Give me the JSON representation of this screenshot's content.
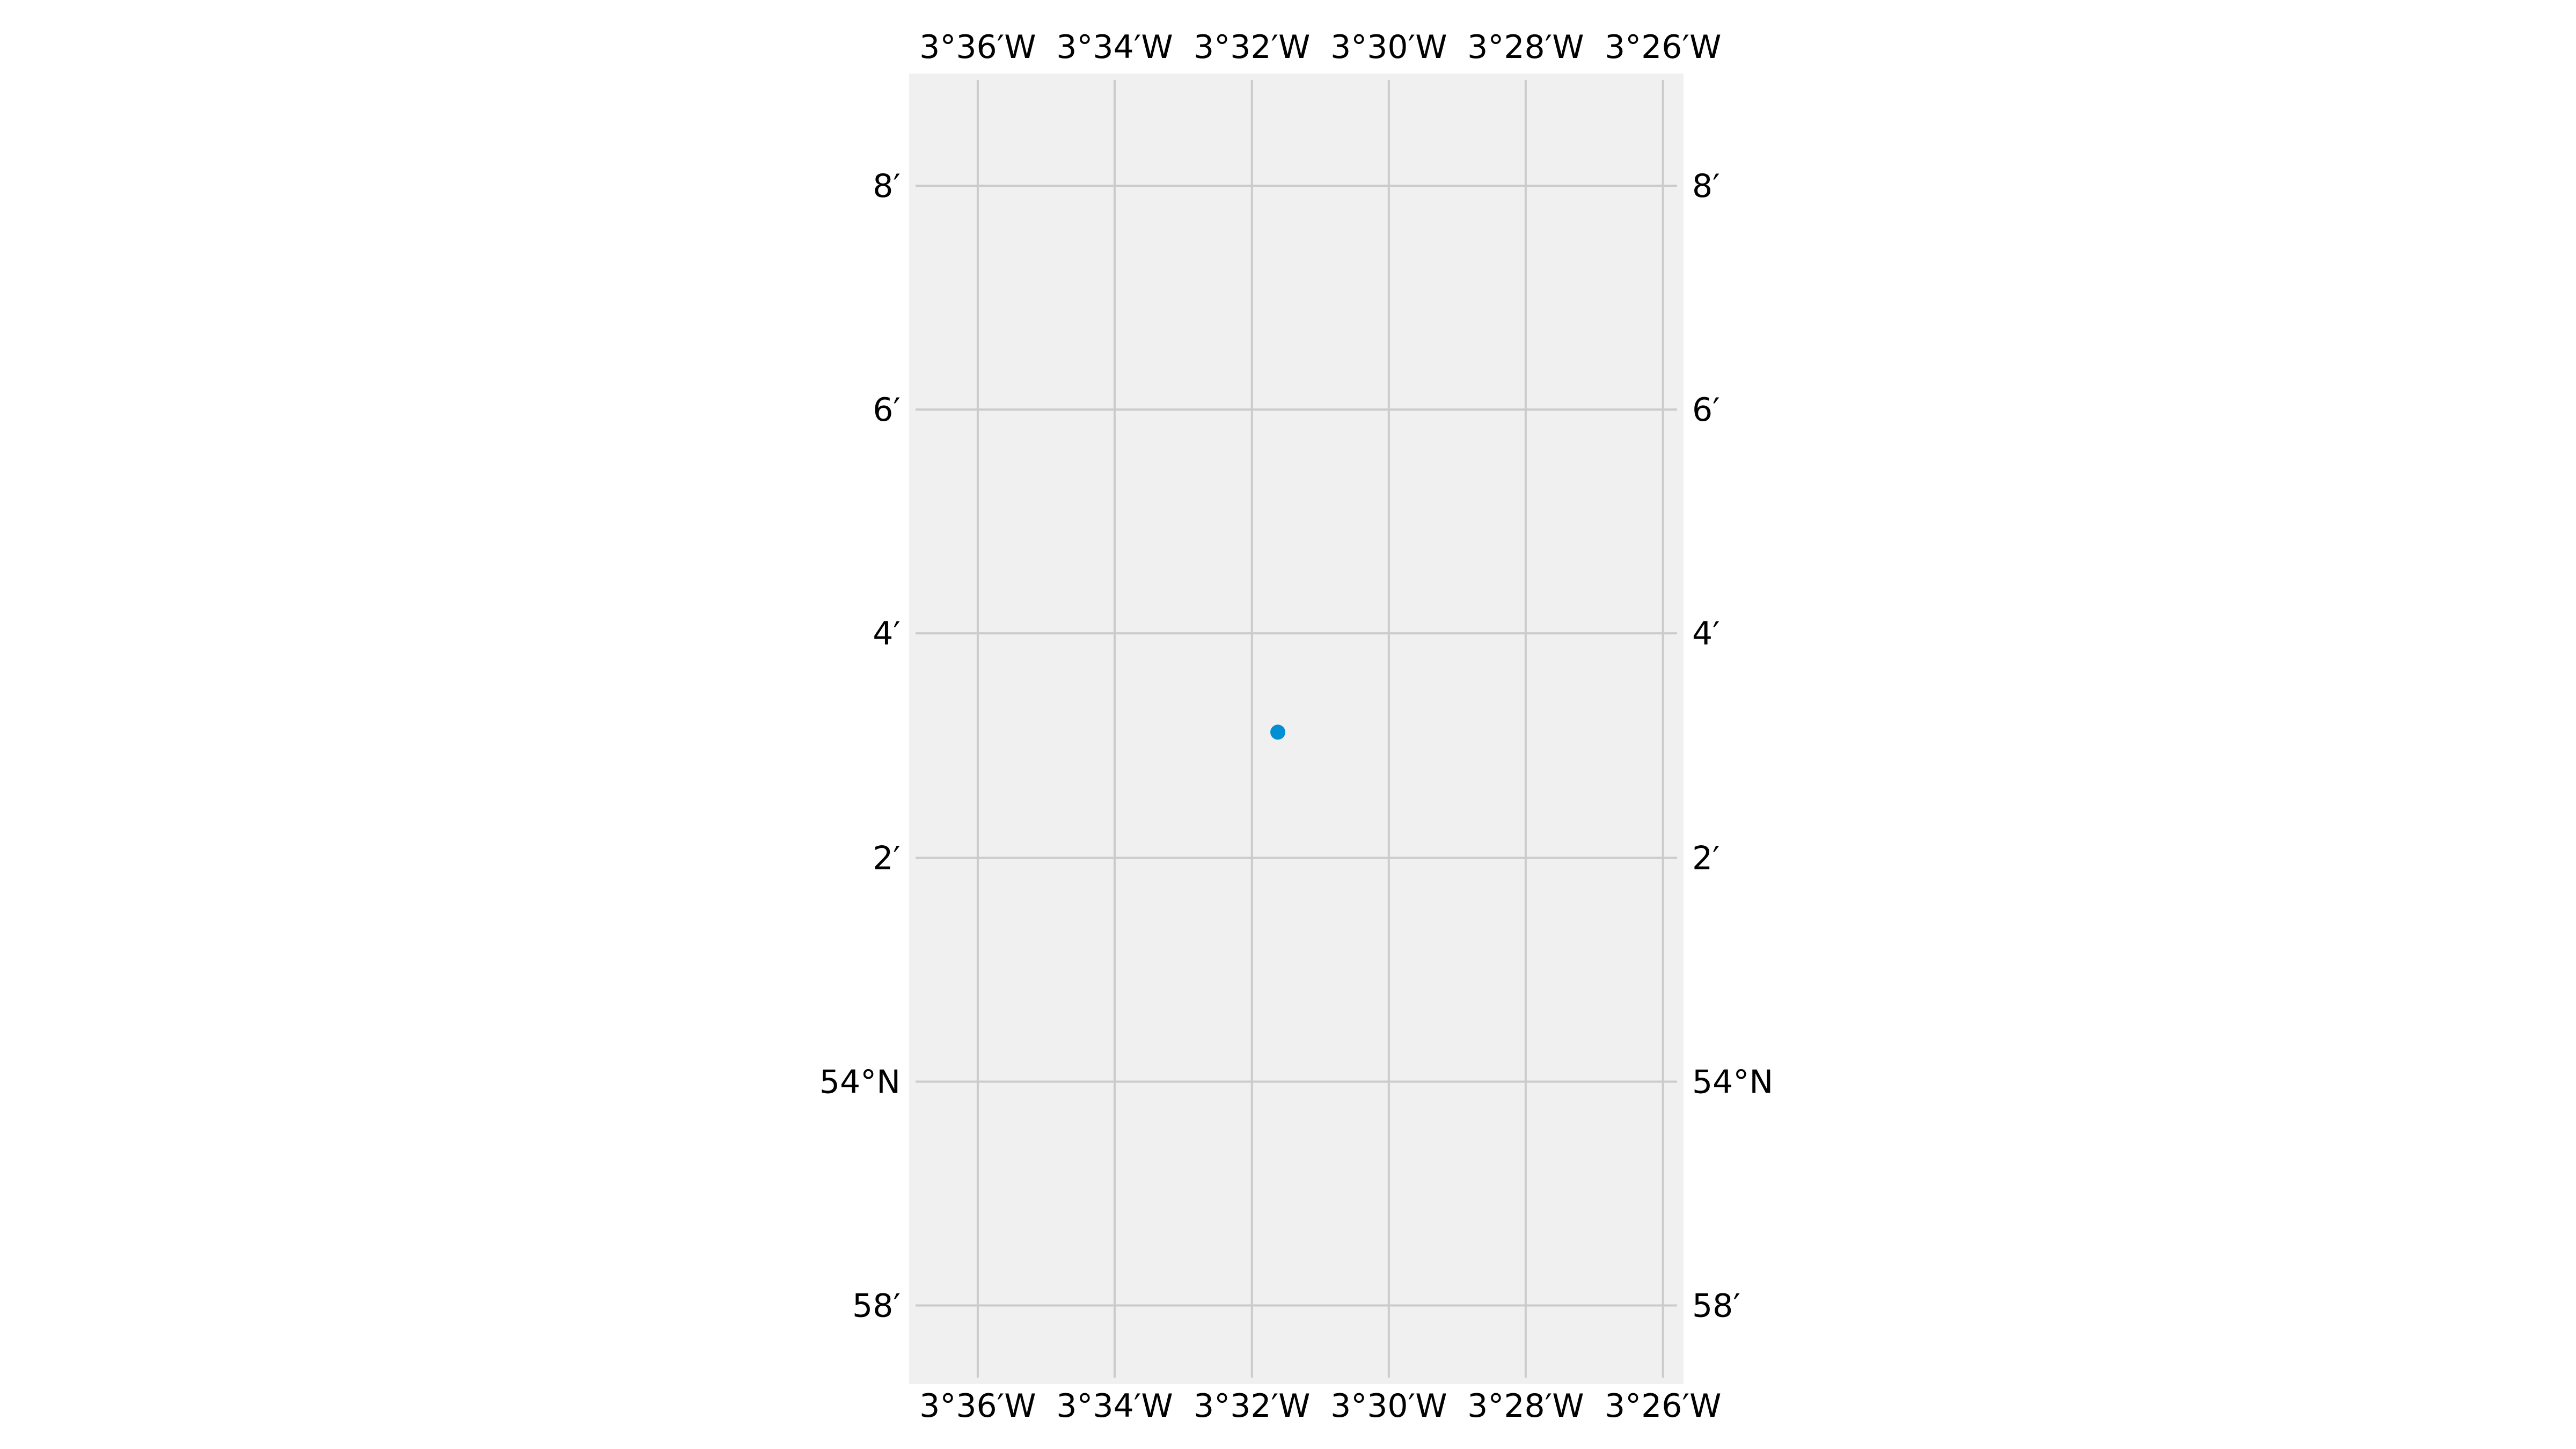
{
  "map": {
    "type": "scatter",
    "projection": "PlateCarree",
    "background_color": "#f0f0f0",
    "grid_color": "#cbcbcb",
    "grid": true,
    "point_color": "#008fd5",
    "xlim": [
      -3.6167,
      -3.4283
    ],
    "ylim": [
      53.955,
      54.15
    ],
    "longitude_ticks": [
      {
        "value": -3.6,
        "label": "3°36′W"
      },
      {
        "value": -3.5667,
        "label": "3°34′W"
      },
      {
        "value": -3.5333,
        "label": "3°32′W"
      },
      {
        "value": -3.5,
        "label": "3°30′W"
      },
      {
        "value": -3.4667,
        "label": "3°28′W"
      },
      {
        "value": -3.4333,
        "label": "3°26′W"
      }
    ],
    "latitude_ticks": [
      {
        "value": 53.9667,
        "label": "58′"
      },
      {
        "value": 54.0,
        "label": "54°N"
      },
      {
        "value": 54.0333,
        "label": "2′"
      },
      {
        "value": 54.0667,
        "label": "4′"
      },
      {
        "value": 54.1,
        "label": "6′"
      },
      {
        "value": 54.1333,
        "label": "8′"
      }
    ],
    "points": [
      {
        "lon": -3.527,
        "lat": 54.052
      }
    ]
  }
}
